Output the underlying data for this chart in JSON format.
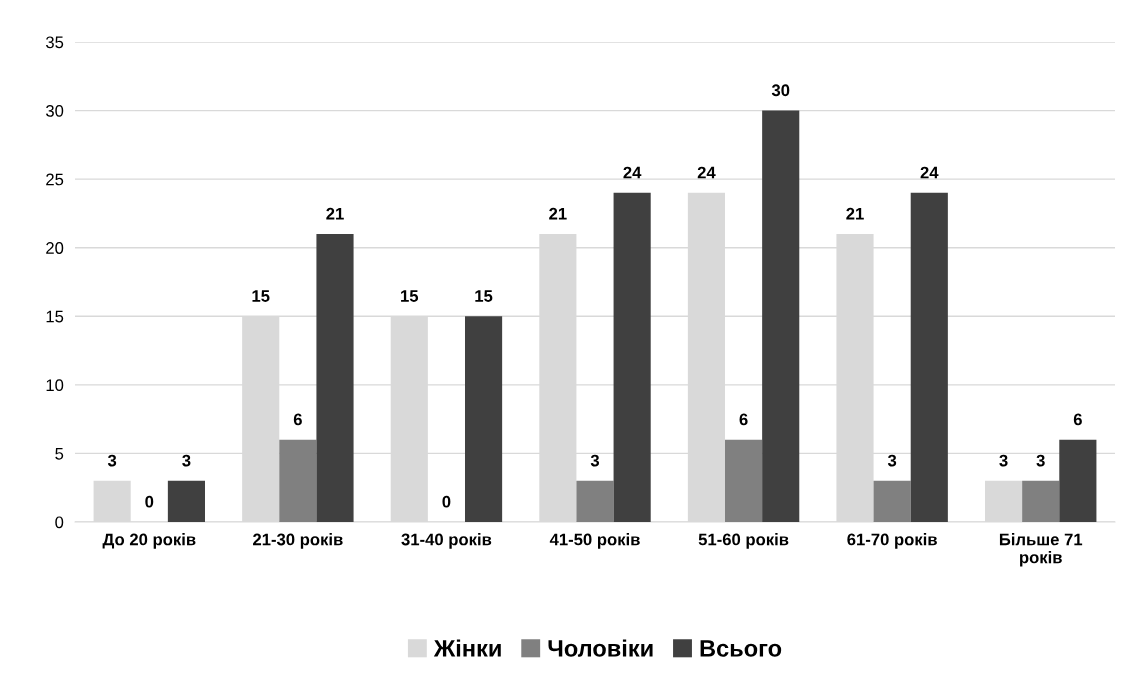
{
  "chart_data": {
    "type": "bar",
    "categories": [
      "До 20 років",
      "21-30 років",
      "31-40 років",
      "41-50 років",
      "51-60 років",
      "61-70 років",
      "Більше 71 років"
    ],
    "series": [
      {
        "name": "Жінки",
        "color": "#d9d9d9",
        "values": [
          3,
          15,
          15,
          21,
          24,
          21,
          3
        ]
      },
      {
        "name": "Чоловіки",
        "color": "#808080",
        "values": [
          0,
          6,
          0,
          3,
          6,
          3,
          3
        ]
      },
      {
        "name": "Всього",
        "color": "#404040",
        "values": [
          3,
          21,
          15,
          24,
          30,
          24,
          6
        ]
      }
    ],
    "ylim": [
      0,
      35
    ],
    "yticks": [
      0,
      5,
      10,
      15,
      20,
      25,
      30,
      35
    ],
    "grid": "y",
    "legend": "bottom",
    "data_labels": true
  }
}
